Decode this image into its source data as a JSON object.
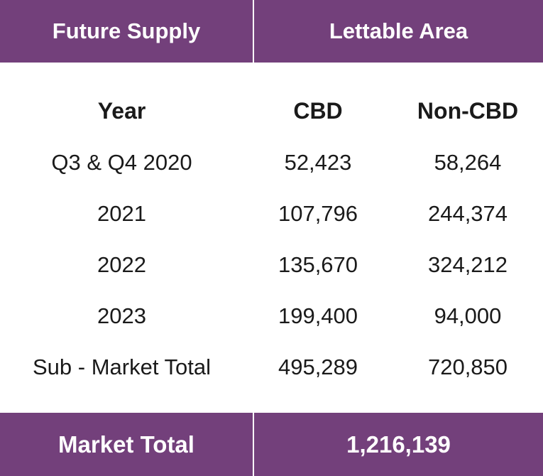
{
  "header": {
    "left": "Future Supply",
    "right": "Lettable Area"
  },
  "columns": {
    "year": "Year",
    "cbd": "CBD",
    "non_cbd": "Non-CBD"
  },
  "rows": [
    {
      "year": "Q3 & Q4 2020",
      "cbd": "52,423",
      "non_cbd": "58,264"
    },
    {
      "year": "2021",
      "cbd": "107,796",
      "non_cbd": "244,374"
    },
    {
      "year": "2022",
      "cbd": "135,670",
      "non_cbd": "324,212"
    },
    {
      "year": "2023",
      "cbd": "199,400",
      "non_cbd": "94,000"
    },
    {
      "year": "Sub - Market Total",
      "cbd": "495,289",
      "non_cbd": "720,850"
    }
  ],
  "footer": {
    "label": "Market Total",
    "value": "1,216,139"
  },
  "colors": {
    "bar": "#73407b",
    "bar_text": "#ffffff",
    "body_text": "#1a1a1a"
  }
}
